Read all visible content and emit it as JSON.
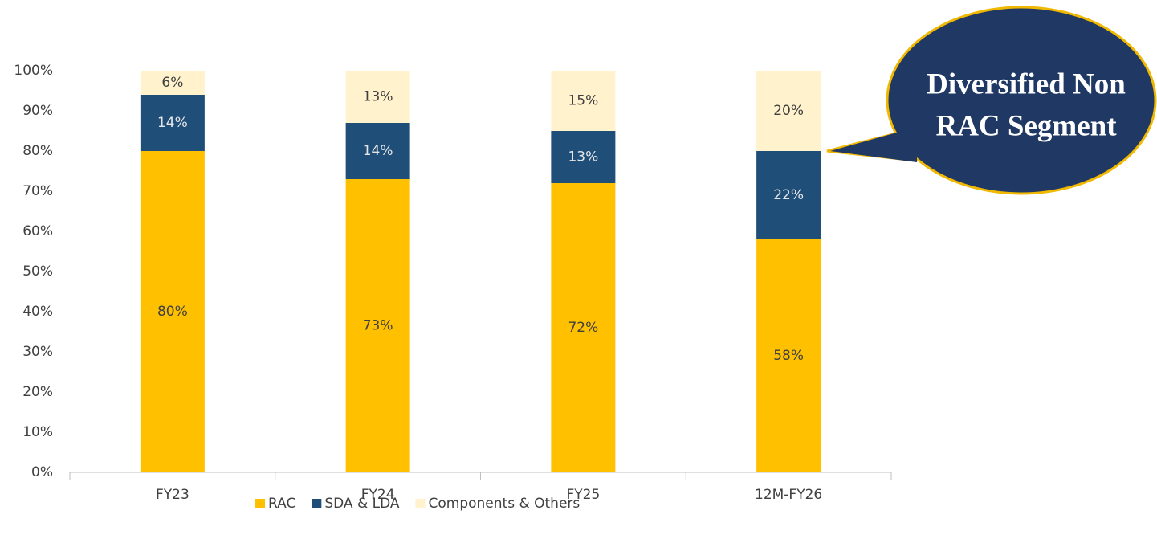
{
  "chart_data": {
    "type": "stacked_bar",
    "categories": [
      "FY23",
      "FY24",
      "FY25",
      "12M-FY26"
    ],
    "series": [
      {
        "name": "RAC",
        "color": "#ffc000",
        "values": [
          80,
          73,
          72,
          58
        ],
        "value_labels": [
          "80%",
          "73%",
          "72%",
          "58%"
        ]
      },
      {
        "name": "SDA & LDA",
        "color": "#1f4e79",
        "values": [
          14,
          14,
          13,
          22
        ],
        "value_labels": [
          "14%",
          "14%",
          "13%",
          "22%"
        ]
      },
      {
        "name": "Components & Others",
        "color": "#fff2cc",
        "values": [
          6,
          13,
          15,
          20
        ],
        "value_labels": [
          "6%",
          "13%",
          "15%",
          "20%"
        ]
      }
    ],
    "ylim": [
      0,
      100
    ],
    "yticks": [
      {
        "value": 0,
        "label": "0%"
      },
      {
        "value": 10,
        "label": "10%"
      },
      {
        "value": 20,
        "label": "20%"
      },
      {
        "value": 30,
        "label": "30%"
      },
      {
        "value": 40,
        "label": "40%"
      },
      {
        "value": 50,
        "label": "50%"
      },
      {
        "value": 60,
        "label": "60%"
      },
      {
        "value": 70,
        "label": "70%"
      },
      {
        "value": 80,
        "label": "80%"
      },
      {
        "value": 90,
        "label": "90%"
      },
      {
        "value": 100,
        "label": "100%"
      }
    ],
    "grid": false,
    "legend": "bottom",
    "annotation": [
      "Diversified Non",
      "RAC Segment"
    ]
  }
}
